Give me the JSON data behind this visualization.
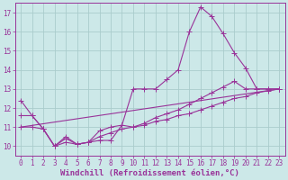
{
  "xlabel": "Windchill (Refroidissement éolien,°C)",
  "background_color": "#cce8e8",
  "grid_color": "#aacccc",
  "line_color": "#993399",
  "xlim": [
    -0.5,
    23.5
  ],
  "ylim": [
    9.5,
    17.5
  ],
  "yticks": [
    10,
    11,
    12,
    13,
    14,
    15,
    16,
    17
  ],
  "xticks": [
    0,
    1,
    2,
    3,
    4,
    5,
    6,
    7,
    8,
    9,
    10,
    11,
    12,
    13,
    14,
    15,
    16,
    17,
    18,
    19,
    20,
    21,
    22,
    23
  ],
  "series1_x": [
    0,
    1,
    2,
    3,
    4,
    5,
    6,
    7,
    8,
    9,
    10,
    11,
    12,
    13,
    14,
    15,
    16,
    17,
    18,
    19,
    20,
    21,
    22,
    23
  ],
  "series1_y": [
    12.4,
    11.6,
    10.9,
    10.0,
    10.5,
    10.1,
    10.2,
    10.3,
    10.3,
    11.1,
    13.0,
    13.0,
    13.0,
    13.5,
    14.0,
    16.0,
    17.3,
    16.8,
    15.9,
    14.9,
    14.1,
    13.0,
    13.0,
    13.0
  ],
  "series2_x": [
    0,
    1,
    2,
    3,
    4,
    5,
    6,
    7,
    8,
    9,
    10,
    11,
    12,
    13,
    14,
    15,
    16,
    17,
    18,
    19,
    20,
    21,
    22,
    23
  ],
  "series2_y": [
    11.6,
    11.6,
    10.9,
    10.0,
    10.4,
    10.1,
    10.2,
    10.8,
    11.0,
    11.1,
    11.0,
    11.2,
    11.5,
    11.7,
    11.9,
    12.2,
    12.5,
    12.8,
    13.1,
    13.4,
    13.0,
    13.0,
    13.0,
    13.0
  ],
  "series3_x": [
    0,
    1,
    2,
    3,
    4,
    5,
    6,
    7,
    8,
    9,
    10,
    11,
    12,
    13,
    14,
    15,
    16,
    17,
    18,
    19,
    20,
    21,
    22,
    23
  ],
  "series3_y": [
    11.0,
    11.0,
    10.9,
    10.0,
    10.2,
    10.1,
    10.2,
    10.5,
    10.7,
    10.9,
    11.0,
    11.1,
    11.3,
    11.4,
    11.6,
    11.7,
    11.9,
    12.1,
    12.3,
    12.5,
    12.6,
    12.8,
    12.9,
    13.0
  ],
  "series4_x": [
    0,
    23
  ],
  "series4_y": [
    11.0,
    13.0
  ],
  "xlabel_fontsize": 6.5,
  "tick_fontsize": 5.5,
  "marker_size": 2.5,
  "lw": 0.8
}
